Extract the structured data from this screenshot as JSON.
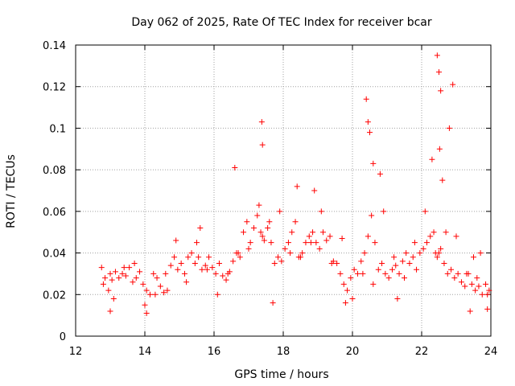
{
  "chart_data": {
    "type": "scatter",
    "title": "Day 062 of 2025, Rate Of TEC Index for receiver bcar",
    "xlabel": "GPS time / hours",
    "ylabel": "ROTI / TECUs",
    "xlim": [
      12,
      24
    ],
    "ylim": [
      0,
      0.14
    ],
    "xticks": [
      "12",
      "14",
      "16",
      "18",
      "20",
      "22",
      "24"
    ],
    "yticks": [
      "0",
      "0.02",
      "0.04",
      "0.06",
      "0.08",
      "0.1",
      "0.12",
      "0.14"
    ],
    "grid": true,
    "marker": "plus",
    "colors": {
      "points": "#ff0000",
      "grid": "#a0a0a0",
      "axes": "#000000"
    },
    "series": [
      {
        "name": "",
        "x": [
          12.75,
          12.85,
          12.95,
          13.0,
          13.05,
          13.15,
          13.25,
          13.35,
          13.45,
          13.55,
          13.65,
          13.75,
          13.85,
          13.95,
          14.05,
          14.15,
          14.25,
          14.35,
          14.45,
          14.55,
          14.65,
          14.75,
          14.85,
          14.95,
          15.05,
          15.15,
          15.25,
          15.35,
          15.45,
          15.55,
          15.65,
          15.75,
          15.85,
          15.95,
          16.05,
          16.15,
          16.25,
          16.35,
          16.45,
          16.55,
          16.65,
          16.75,
          16.85,
          16.95,
          17.05,
          17.15,
          17.25,
          17.35,
          17.4,
          17.45,
          17.55,
          17.65,
          17.75,
          17.85,
          17.95,
          18.05,
          18.15,
          18.25,
          18.35,
          18.45,
          18.55,
          18.65,
          18.75,
          18.85,
          18.95,
          19.05,
          19.15,
          19.25,
          19.35,
          19.45,
          19.55,
          19.65,
          19.75,
          19.85,
          19.95,
          20.05,
          20.15,
          20.25,
          20.35,
          20.45,
          20.55,
          20.65,
          20.75,
          20.85,
          20.95,
          21.05,
          21.15,
          21.25,
          21.35,
          21.45,
          21.55,
          21.65,
          21.75,
          21.85,
          21.95,
          22.05,
          22.15,
          22.25,
          22.35,
          22.45,
          22.5,
          22.55,
          22.65,
          22.75,
          22.85,
          22.95,
          23.05,
          23.15,
          23.25,
          23.35,
          23.45,
          23.55,
          23.65,
          23.75,
          23.85,
          23.95,
          12.8,
          13.1,
          13.4,
          13.7,
          14.0,
          14.3,
          14.6,
          14.9,
          15.2,
          15.5,
          15.8,
          16.1,
          16.4,
          16.7,
          17.0,
          17.3,
          17.6,
          17.9,
          18.2,
          18.5,
          18.8,
          19.1,
          19.4,
          19.7,
          20.0,
          20.3,
          20.6,
          20.9,
          21.2,
          21.5,
          21.8,
          22.1,
          22.4,
          22.7,
          23.0,
          23.3,
          23.6,
          23.9,
          16.6,
          17.38,
          17.4,
          18.4,
          18.9,
          20.4,
          20.45,
          20.5,
          20.6,
          20.8,
          22.3,
          22.45,
          22.5,
          22.55,
          22.8,
          22.9,
          22.52,
          22.6,
          23.5,
          23.7,
          13.0,
          14.05,
          15.6,
          17.7,
          19.8,
          21.3,
          23.4,
          23.9
        ],
        "y": [
          0.033,
          0.028,
          0.022,
          0.03,
          0.027,
          0.031,
          0.028,
          0.03,
          0.029,
          0.033,
          0.026,
          0.028,
          0.031,
          0.025,
          0.022,
          0.02,
          0.03,
          0.028,
          0.024,
          0.021,
          0.022,
          0.034,
          0.038,
          0.032,
          0.035,
          0.03,
          0.038,
          0.04,
          0.035,
          0.038,
          0.032,
          0.034,
          0.038,
          0.033,
          0.03,
          0.035,
          0.029,
          0.027,
          0.031,
          0.036,
          0.04,
          0.038,
          0.05,
          0.055,
          0.045,
          0.052,
          0.058,
          0.05,
          0.048,
          0.046,
          0.052,
          0.045,
          0.035,
          0.038,
          0.036,
          0.042,
          0.045,
          0.05,
          0.055,
          0.038,
          0.04,
          0.045,
          0.048,
          0.05,
          0.045,
          0.042,
          0.05,
          0.046,
          0.048,
          0.036,
          0.035,
          0.03,
          0.025,
          0.022,
          0.028,
          0.032,
          0.03,
          0.036,
          0.04,
          0.048,
          0.058,
          0.045,
          0.032,
          0.035,
          0.03,
          0.028,
          0.032,
          0.034,
          0.03,
          0.036,
          0.04,
          0.035,
          0.038,
          0.032,
          0.04,
          0.042,
          0.045,
          0.048,
          0.05,
          0.038,
          0.04,
          0.042,
          0.035,
          0.03,
          0.032,
          0.028,
          0.03,
          0.026,
          0.024,
          0.03,
          0.025,
          0.022,
          0.024,
          0.02,
          0.025,
          0.022,
          0.025,
          0.018,
          0.033,
          0.035,
          0.015,
          0.02,
          0.03,
          0.046,
          0.026,
          0.045,
          0.032,
          0.02,
          0.03,
          0.04,
          0.042,
          0.063,
          0.055,
          0.06,
          0.04,
          0.038,
          0.045,
          0.06,
          0.035,
          0.047,
          0.018,
          0.03,
          0.025,
          0.06,
          0.038,
          0.028,
          0.045,
          0.06,
          0.04,
          0.05,
          0.048,
          0.03,
          0.028,
          0.02,
          0.081,
          0.103,
          0.092,
          0.072,
          0.07,
          0.114,
          0.103,
          0.098,
          0.083,
          0.078,
          0.085,
          0.135,
          0.127,
          0.118,
          0.1,
          0.121,
          0.09,
          0.075,
          0.038,
          0.04,
          0.012,
          0.011,
          0.052,
          0.016,
          0.016,
          0.018,
          0.012,
          0.013
        ]
      }
    ]
  }
}
